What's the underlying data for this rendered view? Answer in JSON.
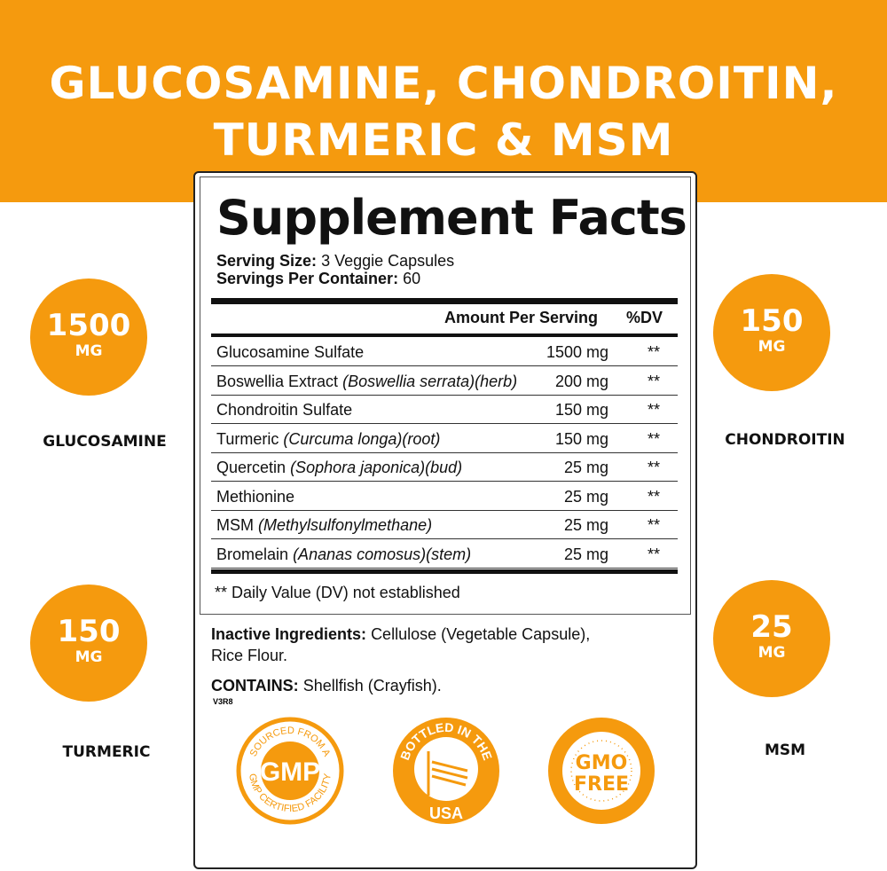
{
  "headline": [
    "GLUCOSAMINE, CHONDROITIN,",
    "TURMERIC & MSM"
  ],
  "accent_color": "#F59A0E",
  "facts": {
    "title": "Supplement Facts",
    "serving_size_label": "Serving Size:",
    "serving_size": "3 Veggie Capsules",
    "servings_label": "Servings Per Container:",
    "servings": "60",
    "col_amount": "Amount Per Serving",
    "col_dv": "%DV",
    "rows": [
      {
        "name": "Glucosamine Sulfate",
        "detail": "",
        "amount": "1500 mg",
        "dv": "**"
      },
      {
        "name": "Boswellia Extract",
        "detail": "(Boswellia serrata)(herb)",
        "amount": "200 mg",
        "dv": "**"
      },
      {
        "name": "Chondroitin Sulfate",
        "detail": "",
        "amount": "150 mg",
        "dv": "**"
      },
      {
        "name": "Turmeric",
        "detail": "(Curcuma longa)(root)",
        "amount": "150 mg",
        "dv": "**"
      },
      {
        "name": "Quercetin",
        "detail": "(Sophora japonica)(bud)",
        "amount": "25 mg",
        "dv": "**"
      },
      {
        "name": "Methionine",
        "detail": "",
        "amount": "25 mg",
        "dv": "**"
      },
      {
        "name": "MSM",
        "detail": "(Methylsulfonylmethane)",
        "amount": "25 mg",
        "dv": "**"
      },
      {
        "name": "Bromelain",
        "detail": "(Ananas comosus)(stem)",
        "amount": "25 mg",
        "dv": "**"
      }
    ],
    "note": "** Daily Value (DV) not established"
  },
  "inactive_label": "Inactive Ingredients:",
  "inactive": "Cellulose (Vegetable Capsule),",
  "inactive2": "Rice Flour.",
  "contains_label": "CONTAINS:",
  "contains": "Shellfish (Crayfish).",
  "version": "V3R8",
  "callouts": [
    {
      "value": "1500",
      "unit": "MG",
      "label": "GLUCOSAMINE"
    },
    {
      "value": "150",
      "unit": "MG",
      "label": "CHONDROITIN"
    },
    {
      "value": "150",
      "unit": "MG",
      "label": "TURMERIC"
    },
    {
      "value": "25",
      "unit": "MG",
      "label": "MSM"
    }
  ],
  "badges": {
    "gmp": {
      "top": "SOURCED FROM A",
      "center": "GMP",
      "bottom": "GMP CERTIFIED FACILITY"
    },
    "usa": {
      "top": "BOTTLED IN THE",
      "bottom": "USA"
    },
    "gmo": {
      "line1": "GMO",
      "line2": "FREE"
    }
  }
}
